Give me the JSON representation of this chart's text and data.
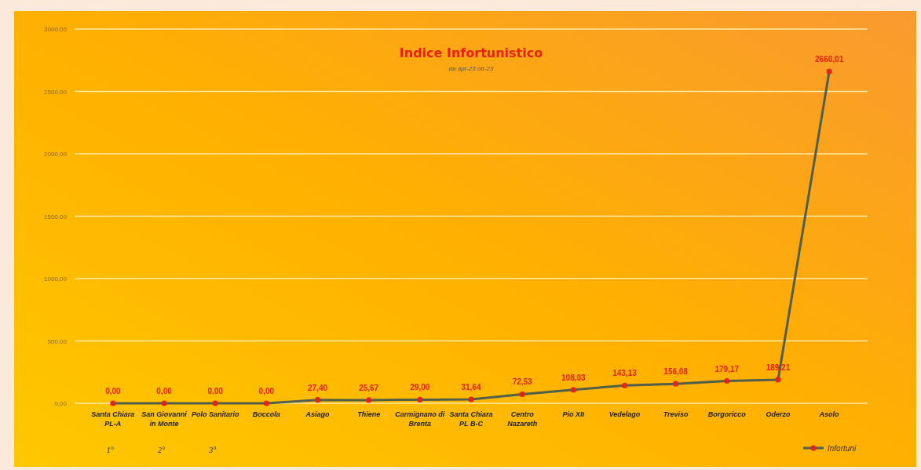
{
  "chart_data": {
    "type": "line",
    "title": "Indice Infortunistico",
    "subtitle": "da apr-23 ott-23",
    "categories": [
      "Santa Chiara PL-A",
      "San Giovanni in Monte",
      "Polo Sanitario",
      "Boccola",
      "Asiago",
      "Thiene",
      "Carmignano di Brenta",
      "Santa Chiara PL B-C",
      "Centro Nazareth",
      "Pio XII",
      "Vedelago",
      "Treviso",
      "Borgoricco",
      "Oderzo",
      "Asolo"
    ],
    "series": [
      {
        "name": "Infortuni",
        "color": "#4f5f4a",
        "values": [
          0,
          0,
          0,
          0,
          27.4,
          25.67,
          29,
          31.64,
          72.53,
          108.03,
          143.13,
          156.08,
          179.17,
          189.21,
          2660.01
        ],
        "value_labels": [
          "0,00",
          "0,00",
          "0,00",
          "0,00",
          "27,40",
          "25,67",
          "29,00",
          "31,64",
          "72,53",
          "108,03",
          "143,13",
          "156,08",
          "179,17",
          "189,21",
          "2660,01"
        ]
      }
    ],
    "ylim": [
      0,
      3000
    ],
    "yticks": [
      {
        "value": 0,
        "label": "0,00"
      },
      {
        "value": 500,
        "label": "500,00"
      },
      {
        "value": 1000,
        "label": "1000,00"
      },
      {
        "value": 1500,
        "label": "1500,00"
      },
      {
        "value": 2000,
        "label": "2000,00"
      },
      {
        "value": 2500,
        "label": "2500,00"
      },
      {
        "value": 3000,
        "label": "3000,00"
      }
    ],
    "grid": "y",
    "legend": "bottom right",
    "marker": "circle",
    "line_style": "solid",
    "annotations": [
      "1°",
      "2°",
      "3°"
    ]
  }
}
